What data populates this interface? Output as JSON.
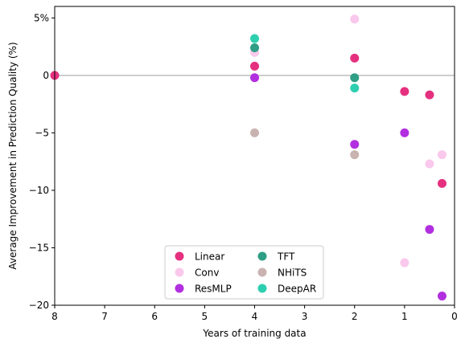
{
  "chart_data": {
    "type": "scatter",
    "xlabel": "Years of training data",
    "ylabel": "Average Improvement in Prediction Quality (%)",
    "xlim": [
      8,
      0
    ],
    "ylim": [
      -20,
      6
    ],
    "x_reversed": true,
    "x_ticks": [
      "8",
      "7",
      "6",
      "5",
      "4",
      "3",
      "2",
      "1",
      "0"
    ],
    "y_ticks": [
      "−20",
      "−15",
      "−10",
      "−5",
      "0",
      "5%"
    ],
    "y_tick_values": [
      -20,
      -15,
      -10,
      -5,
      0,
      5
    ],
    "x_tick_values": [
      8,
      7,
      6,
      5,
      4,
      3,
      2,
      1,
      0
    ],
    "reference_line": {
      "y": 0,
      "color": "#bdbdbd"
    },
    "legend_position": "lower-center",
    "series": [
      {
        "name": "Linear",
        "color": "#e5307f",
        "points": [
          [
            8,
            0
          ],
          [
            4,
            0.8
          ],
          [
            2,
            1.5
          ],
          [
            1,
            -1.4
          ],
          [
            0.5,
            -1.7
          ],
          [
            0.25,
            -9.4
          ]
        ]
      },
      {
        "name": "Conv",
        "color": "#f9c8ec",
        "points": [
          [
            4,
            2.0
          ],
          [
            2,
            4.9
          ],
          [
            1,
            -16.3
          ],
          [
            0.5,
            -7.7
          ],
          [
            0.25,
            -6.9
          ]
        ]
      },
      {
        "name": "ResMLP",
        "color": "#b22fe0",
        "points": [
          [
            4,
            -0.2
          ],
          [
            2,
            -6.0
          ],
          [
            1,
            -5.0
          ],
          [
            0.5,
            -13.4
          ],
          [
            0.25,
            -19.2
          ]
        ]
      },
      {
        "name": "TFT",
        "color": "#2e9e84",
        "points": [
          [
            4,
            2.4
          ],
          [
            2,
            -0.2
          ]
        ]
      },
      {
        "name": "NHiTS",
        "color": "#c9b3b1",
        "points": [
          [
            4,
            -5.0
          ],
          [
            2,
            -6.9
          ]
        ]
      },
      {
        "name": "DeepAR",
        "color": "#2ecfb0",
        "points": [
          [
            4,
            3.2
          ],
          [
            2,
            -1.1
          ]
        ]
      }
    ]
  }
}
